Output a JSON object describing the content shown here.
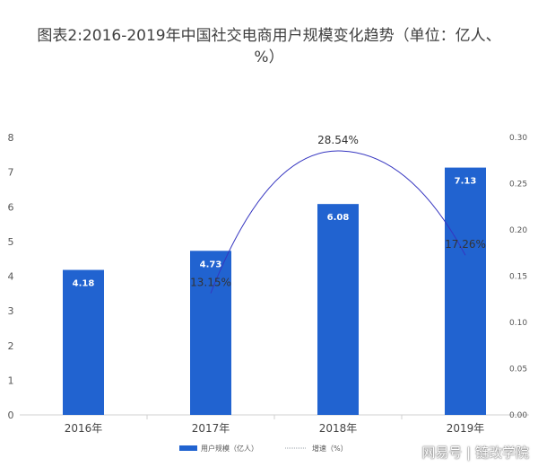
{
  "title": "图表2:2016-2019年中国社交电商用户规模变化趋势（单位：亿人、%）",
  "watermark": "网易号 | 链改学院",
  "chart_data": {
    "type": "bar",
    "categories": [
      "2016年",
      "2017年",
      "2018年",
      "2019年"
    ],
    "series": [
      {
        "name": "用户规模（亿人）",
        "type": "bar",
        "axis": "left",
        "values": [
          4.18,
          4.73,
          6.08,
          7.13
        ],
        "labels": [
          "4.18",
          "4.73",
          "6.08",
          "7.13"
        ],
        "color": "#2163d0"
      },
      {
        "name": "增速（%）",
        "type": "line",
        "axis": "right",
        "values": [
          null,
          0.1315,
          0.2854,
          0.1726
        ],
        "labels": [
          "",
          "13.15%",
          "28.54%",
          "17.26%"
        ],
        "color": "#3535c0"
      }
    ],
    "y_left": {
      "min": 0,
      "max": 8,
      "ticks": [
        "0",
        "1",
        "2",
        "3",
        "4",
        "5",
        "6",
        "7",
        "8"
      ]
    },
    "y_right": {
      "min": 0,
      "max": 0.3,
      "ticks": [
        "0.00",
        "0.05",
        "0.10",
        "0.15",
        "0.20",
        "0.25",
        "0.30"
      ]
    },
    "legend": "bottom"
  }
}
